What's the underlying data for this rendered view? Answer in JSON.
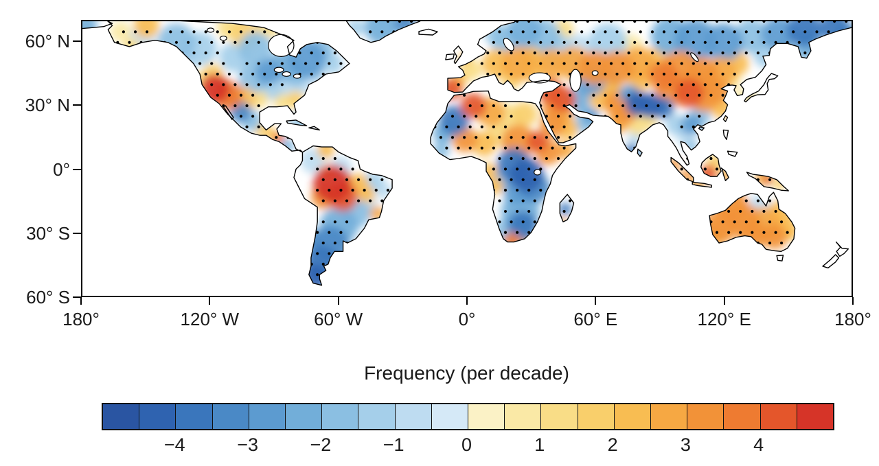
{
  "axes": {
    "lat_tick_labels": [
      "60° N",
      "30° N",
      "0°",
      "30° S",
      "60° S"
    ],
    "lat_tick_values": [
      60,
      30,
      0,
      -30,
      -60
    ],
    "lon_tick_labels": [
      "180°",
      "120° W",
      "60° W",
      "0°",
      "60° E",
      "120° E",
      "180°"
    ],
    "lon_tick_values": [
      -180,
      -120,
      -60,
      0,
      60,
      120,
      180
    ]
  },
  "colorbar": {
    "title": "Frequency (per decade)",
    "range": [
      -5,
      5
    ],
    "cell_width_value": 0.5,
    "colors": [
      "#2a55a2",
      "#2f63b0",
      "#3a76bc",
      "#4a89c6",
      "#5c9bd0",
      "#72aed9",
      "#8bbfe2",
      "#a5cfea",
      "#bedcf1",
      "#d5e9f7",
      "#fbf2c6",
      "#fae9a6",
      "#f9dd87",
      "#f9cf6b",
      "#f8bd52",
      "#f6a843",
      "#f29238",
      "#ee7b31",
      "#e4562b",
      "#d63428"
    ],
    "tick_labels": [
      "−4",
      "−3",
      "−2",
      "−1",
      "0",
      "1",
      "2",
      "3",
      "4"
    ],
    "tick_values": [
      -4,
      -3,
      -2,
      -1,
      0,
      1,
      2,
      3,
      4
    ]
  },
  "chart_data": {
    "type": "heatmap",
    "projection": "equirectangular",
    "map": {
      "lon_min": -180,
      "lon_max": 180,
      "lat_min": -60,
      "lat_max": 70
    },
    "title": "Frequency (per decade)",
    "value_range": [
      -5,
      5
    ],
    "stipple_dots": true,
    "anomaly_cells": [
      [
        -178,
        68,
        5,
        -2.5
      ],
      [
        -150,
        68,
        6,
        2.3
      ],
      [
        -162,
        65,
        5,
        0.8
      ],
      [
        -152,
        62,
        6,
        -1
      ],
      [
        -157,
        58,
        4,
        1.2
      ],
      [
        -136,
        60,
        9,
        -1.8
      ],
      [
        -125,
        57,
        8,
        -1.4
      ],
      [
        -131,
        52,
        5,
        -1
      ],
      [
        -104,
        64,
        7,
        1.6
      ],
      [
        -93,
        67,
        5,
        1.4
      ],
      [
        -112,
        67,
        5,
        1
      ],
      [
        -99,
        57,
        8,
        -1.6
      ],
      [
        -109,
        53,
        7,
        -1.2
      ],
      [
        -75,
        52,
        9,
        -2.6
      ],
      [
        -68,
        57,
        6,
        -2
      ],
      [
        -63,
        50,
        5,
        -1.5
      ],
      [
        -86,
        49,
        7,
        -2.2
      ],
      [
        -93,
        46,
        6,
        -2.6
      ],
      [
        -80,
        45,
        6,
        -2
      ],
      [
        -71,
        45,
        4,
        -1.2
      ],
      [
        -118,
        38,
        7,
        4.7
      ],
      [
        -112,
        35,
        7,
        3.6
      ],
      [
        -105,
        33,
        6,
        2.4
      ],
      [
        -119,
        45,
        5,
        1.8
      ],
      [
        -125,
        42,
        4,
        1
      ],
      [
        -100,
        43,
        7,
        -2
      ],
      [
        -92,
        39,
        6,
        -1.4
      ],
      [
        -97,
        33,
        4,
        1.4
      ],
      [
        -86,
        33,
        5,
        1
      ],
      [
        -80,
        33,
        4,
        1.6
      ],
      [
        -77,
        39,
        4,
        -0.6
      ],
      [
        -84,
        40,
        5,
        -1
      ],
      [
        -106,
        27,
        5,
        -3.4
      ],
      [
        -101,
        23,
        5,
        -2
      ],
      [
        -96,
        19,
        4,
        1.6
      ],
      [
        -91,
        16,
        3,
        2.2
      ],
      [
        -88,
        14.5,
        2.5,
        4.2
      ],
      [
        -84,
        11,
        3,
        -2.2
      ],
      [
        -40,
        67,
        8,
        -2.4
      ],
      [
        -29,
        69,
        5,
        -3.2
      ],
      [
        -52,
        67,
        4,
        -1.4
      ],
      [
        -78,
        22,
        5,
        -1.4
      ],
      [
        -72,
        4,
        6,
        -1
      ],
      [
        -66,
        9,
        4,
        2
      ],
      [
        -59,
        1,
        5,
        -0.6
      ],
      [
        -63,
        -7,
        9,
        4.6
      ],
      [
        -58,
        -13,
        7,
        4.2
      ],
      [
        -67,
        -13,
        6,
        3
      ],
      [
        -66,
        -2,
        4,
        1.8
      ],
      [
        -51,
        -7,
        5,
        2.2
      ],
      [
        -47,
        -12,
        4,
        2.4
      ],
      [
        -42,
        -21,
        3.5,
        2.6
      ],
      [
        -44,
        -6,
        5,
        -1.4
      ],
      [
        -39,
        -10,
        4,
        -1
      ],
      [
        -52,
        -21,
        7,
        -1.6
      ],
      [
        -47,
        -17,
        5,
        -1
      ],
      [
        -60,
        -27,
        9,
        -2.4
      ],
      [
        -64,
        -36,
        9,
        -3.2
      ],
      [
        -68,
        -44,
        8,
        -4
      ],
      [
        -71,
        -51,
        6,
        -4.4
      ],
      [
        -73,
        -33,
        5,
        -3
      ],
      [
        -6,
        23,
        7,
        -3.6
      ],
      [
        -11,
        17,
        5,
        -2.4
      ],
      [
        3,
        30,
        6,
        4.4
      ],
      [
        11,
        27,
        7,
        2.6
      ],
      [
        19,
        24,
        7,
        1.4
      ],
      [
        27,
        26,
        6,
        1.8
      ],
      [
        -1,
        14,
        6,
        3
      ],
      [
        8,
        12,
        6,
        2.2
      ],
      [
        -12,
        9,
        4,
        -1.8
      ],
      [
        24,
        13,
        8,
        3.2
      ],
      [
        33,
        13,
        5,
        4.2
      ],
      [
        15,
        17,
        6,
        1.4
      ],
      [
        38,
        8,
        6,
        3.4
      ],
      [
        46,
        9,
        4,
        2.6
      ],
      [
        22,
        2,
        8,
        -3.6
      ],
      [
        28,
        -3,
        8,
        -4.4
      ],
      [
        32,
        -9,
        7,
        -3.4
      ],
      [
        24,
        -10,
        7,
        -2.8
      ],
      [
        17,
        -4,
        5,
        -1.8
      ],
      [
        10,
        -1,
        4,
        2
      ],
      [
        13,
        -8,
        4,
        2
      ],
      [
        25,
        -20,
        9,
        -2.4
      ],
      [
        26,
        -27,
        7,
        -3.6
      ],
      [
        19,
        -29,
        6,
        -2
      ],
      [
        21,
        -34,
        4,
        3.6
      ],
      [
        27,
        -33,
        3,
        2.4
      ],
      [
        46,
        -19,
        3,
        -3.6
      ],
      [
        45,
        -25,
        2,
        2.6
      ],
      [
        -7,
        38,
        5,
        4.2
      ],
      [
        -4,
        42,
        4,
        2.4
      ],
      [
        2,
        47,
        5,
        1.2
      ],
      [
        -1,
        52,
        3,
        2.4
      ],
      [
        14,
        50,
        7,
        2.4
      ],
      [
        24,
        50,
        8,
        2.6
      ],
      [
        31,
        47,
        6,
        2.2
      ],
      [
        21,
        43,
        5,
        1.8
      ],
      [
        18,
        61,
        7,
        -2
      ],
      [
        27,
        66,
        8,
        -2.4
      ],
      [
        13,
        64,
        5,
        -1.4
      ],
      [
        36,
        63,
        8,
        -1.6
      ],
      [
        30,
        57,
        6,
        -1.8
      ],
      [
        45,
        66,
        5,
        1
      ],
      [
        42,
        56,
        8,
        -1.2
      ],
      [
        52,
        57,
        7,
        -0.8
      ],
      [
        40,
        50,
        7,
        2.6
      ],
      [
        50,
        50,
        8,
        2.8
      ],
      [
        60,
        48,
        8,
        3
      ],
      [
        70,
        48,
        8,
        3
      ],
      [
        80,
        50,
        8,
        2.6
      ],
      [
        90,
        51,
        7,
        2.2
      ],
      [
        30,
        52,
        6,
        2
      ],
      [
        58,
        42,
        7,
        -2.6
      ],
      [
        66,
        42,
        6,
        -1.6
      ],
      [
        51,
        45,
        4,
        -1.8
      ],
      [
        39,
        37,
        6,
        4
      ],
      [
        45,
        33,
        6,
        4.4
      ],
      [
        40,
        29,
        5,
        3
      ],
      [
        40,
        21,
        6,
        3.4
      ],
      [
        47,
        19,
        5,
        2.2
      ],
      [
        45,
        26,
        5,
        2.6
      ],
      [
        55,
        22,
        5,
        -2
      ],
      [
        58,
        25,
        4,
        -2.6
      ],
      [
        52,
        33,
        6,
        -2.4
      ],
      [
        63,
        34,
        6,
        2.4
      ],
      [
        68,
        37,
        5,
        2
      ],
      [
        70,
        31,
        6,
        3
      ],
      [
        74,
        27,
        6,
        3.4
      ],
      [
        71,
        22,
        5,
        2.6
      ],
      [
        80,
        31,
        6,
        -4.2
      ],
      [
        86,
        30,
        6,
        -4.5
      ],
      [
        92,
        29,
        5,
        -3.6
      ],
      [
        76,
        35,
        5,
        -3
      ],
      [
        80,
        21,
        5,
        1.2
      ],
      [
        85,
        23,
        4,
        1.4
      ],
      [
        79,
        15,
        4,
        -1
      ],
      [
        77,
        9,
        3,
        -3.6
      ],
      [
        81,
        7,
        2,
        -2.4
      ],
      [
        66,
        60,
        9,
        -1.2
      ],
      [
        76,
        57,
        7,
        0.8
      ],
      [
        95,
        63,
        9,
        -2.4
      ],
      [
        107,
        61,
        10,
        -3
      ],
      [
        120,
        60,
        9,
        -2.6
      ],
      [
        133,
        63,
        8,
        -2
      ],
      [
        146,
        64,
        8,
        -3
      ],
      [
        158,
        66,
        8,
        -3.6
      ],
      [
        172,
        67,
        7,
        -4
      ],
      [
        160,
        60,
        6,
        -2.4
      ],
      [
        178,
        64,
        5,
        -3
      ],
      [
        100,
        47,
        9,
        3
      ],
      [
        110,
        45,
        8,
        3.4
      ],
      [
        119,
        46,
        7,
        2.6
      ],
      [
        126,
        50,
        6,
        2
      ],
      [
        92,
        44,
        7,
        3.6
      ],
      [
        81,
        43,
        6,
        2.4
      ],
      [
        96,
        38,
        8,
        3
      ],
      [
        104,
        36,
        7,
        4.4
      ],
      [
        111,
        34,
        7,
        3.4
      ],
      [
        117,
        37,
        6,
        3
      ],
      [
        113,
        41,
        6,
        2.6
      ],
      [
        119,
        29,
        5,
        2.2
      ],
      [
        124,
        42,
        4,
        1.4
      ],
      [
        109,
        25,
        5,
        -1.6
      ],
      [
        105,
        21,
        5,
        -2.6
      ],
      [
        98,
        21,
        5,
        -1.4
      ],
      [
        102,
        15,
        4,
        -1
      ],
      [
        105,
        11,
        3,
        -1.6
      ],
      [
        133,
        34,
        3,
        0.8
      ],
      [
        158,
        56,
        5,
        -2
      ],
      [
        151,
        59,
        5,
        -1.4
      ],
      [
        140,
        54,
        6,
        -1.2
      ],
      [
        128,
        35,
        3,
        0.8
      ],
      [
        97,
        2,
        3,
        3.4
      ],
      [
        103,
        -3,
        3,
        3
      ],
      [
        108,
        -7,
        3,
        2.6
      ],
      [
        113,
        -2,
        4,
        4.4
      ],
      [
        116,
        3,
        4,
        1.8
      ],
      [
        121,
        -3,
        3,
        2.8
      ],
      [
        139,
        -4,
        4,
        2.6
      ],
      [
        141,
        -5,
        2,
        4.6
      ],
      [
        146,
        -7,
        3,
        1.8
      ],
      [
        124,
        -18,
        8,
        3
      ],
      [
        119,
        -27,
        8,
        3.2
      ],
      [
        129,
        -24,
        8,
        3
      ],
      [
        139,
        -26,
        8,
        2.6
      ],
      [
        134,
        -31,
        7,
        3.4
      ],
      [
        144,
        -32,
        6,
        3
      ],
      [
        148,
        -26,
        6,
        2.2
      ],
      [
        116,
        -31,
        6,
        2.4
      ],
      [
        146,
        -20,
        5,
        2
      ],
      [
        151,
        -30,
        4,
        2.4
      ],
      [
        137,
        -17,
        5,
        -1
      ],
      [
        142,
        -22,
        4,
        -0.6
      ]
    ],
    "stippled_regions": [
      [
        -166,
        60,
        -148,
        69
      ],
      [
        -143,
        49,
        -112,
        67
      ],
      [
        -113,
        57,
        -86,
        69
      ],
      [
        -87,
        44,
        -58,
        61
      ],
      [
        -106,
        36,
        -84,
        51
      ],
      [
        -123,
        29,
        -97,
        45
      ],
      [
        -110,
        19,
        -97,
        31
      ],
      [
        -94,
        11,
        -83,
        17
      ],
      [
        -81,
        19,
        -73,
        24
      ],
      [
        -47,
        61,
        -24,
        70
      ],
      [
        -73,
        -3,
        -58,
        7
      ],
      [
        -71,
        -19,
        -49,
        1
      ],
      [
        -74,
        -56,
        -56,
        -24
      ],
      [
        -52,
        -19,
        -37,
        -5
      ],
      [
        -15,
        14,
        1,
        29
      ],
      [
        1,
        19,
        21,
        33
      ],
      [
        -12,
        7,
        38,
        19
      ],
      [
        11,
        -13,
        36,
        7
      ],
      [
        14,
        -33,
        34,
        -14
      ],
      [
        17,
        -36,
        29,
        -30
      ],
      [
        33,
        3,
        49,
        13
      ],
      [
        43,
        -23,
        49,
        -15
      ],
      [
        -10,
        35,
        0,
        44
      ],
      [
        7,
        43,
        36,
        56
      ],
      [
        11,
        55,
        43,
        70
      ],
      [
        36,
        44,
        96,
        56
      ],
      [
        52,
        36,
        64,
        46
      ],
      [
        42,
        55,
        180,
        70
      ],
      [
        33,
        28,
        51,
        42
      ],
      [
        35,
        15,
        49,
        27
      ],
      [
        59,
        23,
        80,
        39
      ],
      [
        74,
        25,
        96,
        35
      ],
      [
        73,
        5,
        82,
        13
      ],
      [
        84,
        33,
        127,
        53
      ],
      [
        99,
        17,
        113,
        27
      ],
      [
        94,
        -6,
        122,
        5
      ],
      [
        133,
        -9,
        148,
        -2
      ],
      [
        113,
        -37,
        153,
        -12
      ]
    ]
  }
}
